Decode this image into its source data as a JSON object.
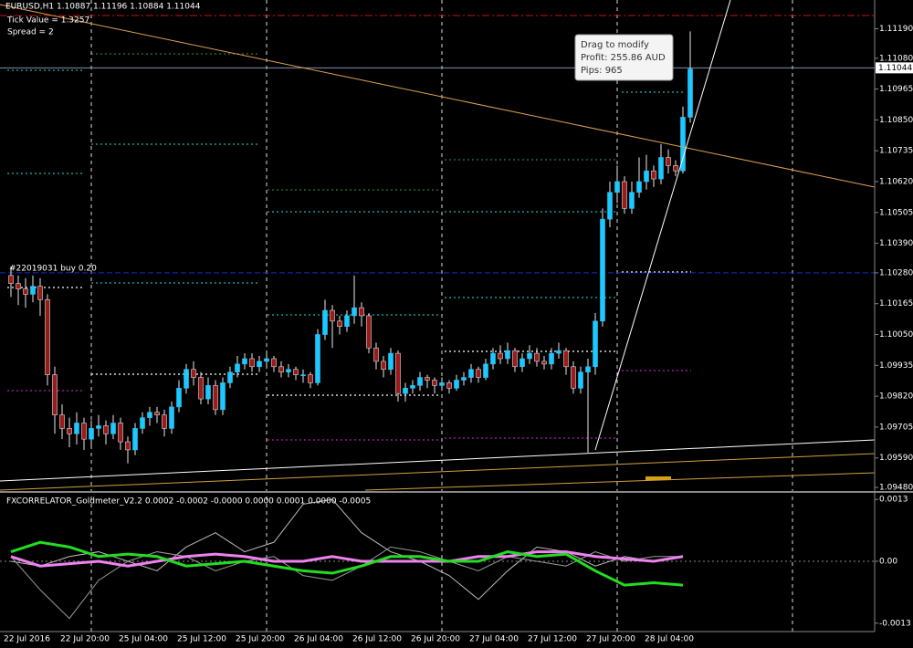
{
  "header": {
    "symbol_line": "EURUSD,H1  1.10887 1.11196 1.10884 1.11044",
    "tick_value": "Tick Value = 1.3257",
    "spread": "Spread = 2"
  },
  "tooltip": {
    "title": "Drag to modify",
    "profit": "Profit: 255.86 AUD",
    "pips": "Pips: 965"
  },
  "price_chart": {
    "type": "candlestick",
    "ylim": [
      1.0947,
      1.1128
    ],
    "yticks": [
      {
        "value": 1.1119,
        "label": "1.11190"
      },
      {
        "value": 1.1108,
        "label": "1.11080"
      },
      {
        "value": 1.10965,
        "label": "1.10965"
      },
      {
        "value": 1.1085,
        "label": "1.10850"
      },
      {
        "value": 1.10735,
        "label": "1.10735"
      },
      {
        "value": 1.1062,
        "label": "1.10620"
      },
      {
        "value": 1.10505,
        "label": "1.10505"
      },
      {
        "value": 1.1039,
        "label": "1.10390"
      },
      {
        "value": 1.1028,
        "label": "1.10280"
      },
      {
        "value": 1.10165,
        "label": "1.10165"
      },
      {
        "value": 1.1005,
        "label": "1.10050"
      },
      {
        "value": 1.09935,
        "label": "1.09935"
      },
      {
        "value": 1.0982,
        "label": "1.09820"
      },
      {
        "value": 1.09705,
        "label": "1.09705"
      },
      {
        "value": 1.0959,
        "label": "1.09590"
      },
      {
        "value": 1.0948,
        "label": "1.09480"
      }
    ],
    "bid": {
      "value": 1.11044,
      "label": "1.11044"
    },
    "take_profit": 1.11239,
    "order": {
      "label": "#22019031 buy 0.20",
      "price": 1.1028
    },
    "bull_color": "#1ec8ff",
    "bear_color": "#9b1a1a",
    "categories": [
      "22 Jul 2016",
      null,
      null,
      null,
      null,
      null,
      null,
      null,
      null,
      null,
      null,
      "22 Jul 20:00",
      null,
      null,
      null,
      null,
      null,
      null,
      null,
      "25 Jul 04:00",
      null,
      null,
      null,
      null,
      null,
      null,
      null,
      "25 Jul 12:00",
      null,
      null,
      null,
      null,
      null,
      null,
      null,
      "25 Jul 20:00",
      null,
      null,
      null,
      null,
      null,
      null,
      null,
      "26 Jul 04:00",
      null,
      null,
      null,
      null,
      null,
      null,
      null,
      "26 Jul 12:00",
      null,
      null,
      null,
      null,
      null,
      null,
      null,
      "26 Jul 20:00",
      null,
      null,
      null,
      null,
      null,
      null,
      null,
      "27 Jul 04:00",
      null,
      null,
      null,
      null,
      null,
      null,
      null,
      "27 Jul 12:00",
      null,
      null,
      null,
      null,
      null,
      null,
      null,
      "27 Jul 20:00",
      null,
      null,
      null,
      null,
      null,
      null,
      null,
      "28 Jul 04:00",
      null,
      null
    ],
    "open": [
      1.1027,
      1.1024,
      1.1022,
      1.102,
      1.1023,
      1.1018,
      1.099,
      1.0975,
      1.097,
      1.0968,
      1.0972,
      1.0966,
      1.097,
      1.0971,
      1.0968,
      1.0972,
      1.0965,
      1.0962,
      1.097,
      1.0974,
      1.0976,
      1.0975,
      1.097,
      1.0978,
      1.0985,
      1.0992,
      1.0989,
      1.0981,
      1.0986,
      1.0977,
      1.0987,
      1.0991,
      1.0994,
      1.0996,
      1.0993,
      1.0995,
      1.0996,
      1.0993,
      1.0991,
      1.0992,
      1.099,
      1.099,
      1.0987,
      1.1005,
      1.1014,
      1.101,
      1.1008,
      1.1012,
      1.1015,
      1.1012,
      1.1,
      1.0995,
      1.0992,
      1.0998,
      1.0983,
      1.0985,
      1.0986,
      1.0989,
      1.0988,
      1.0986,
      1.0987,
      1.0985,
      1.0988,
      1.0989,
      1.0992,
      1.0989,
      1.0994,
      1.0998,
      1.0996,
      1.0999,
      1.0993,
      1.0996,
      1.0998,
      1.0995,
      1.0994,
      1.0998,
      1.0999,
      1.0993,
      1.0985,
      1.0991,
      1.0993,
      1.101,
      1.1048,
      1.1058,
      1.1062,
      1.1052,
      1.1058,
      1.1062,
      1.1066,
      1.1063,
      1.1071,
      1.1068,
      1.1066,
      1.1086
    ],
    "high": [
      1.103,
      1.1027,
      1.1026,
      1.1027,
      1.1026,
      1.102,
      1.0993,
      1.0979,
      1.0974,
      1.0976,
      1.0974,
      1.0973,
      1.0975,
      1.0973,
      1.0975,
      1.0974,
      1.0967,
      1.0972,
      1.0976,
      1.0978,
      1.0978,
      1.0977,
      1.098,
      1.0988,
      1.0994,
      1.0995,
      1.0991,
      1.0989,
      1.0988,
      1.0989,
      1.0993,
      1.0997,
      1.0998,
      1.0998,
      1.0997,
      1.0998,
      1.0997,
      1.0995,
      1.0994,
      1.0993,
      1.0992,
      1.0991,
      1.1007,
      1.1018,
      1.1016,
      1.1012,
      1.1014,
      1.1027,
      1.1017,
      1.1013,
      1.1002,
      1.0997,
      1.1,
      1.0999,
      1.0987,
      1.0988,
      1.0991,
      1.099,
      1.0989,
      1.0989,
      1.0988,
      1.099,
      1.0991,
      1.0994,
      1.0993,
      1.0996,
      1.1,
      1.1001,
      1.1002,
      1.1,
      1.0998,
      1.1001,
      1.1,
      1.0997,
      1.1,
      1.1002,
      1.1,
      1.0995,
      1.0993,
      1.0996,
      1.1013,
      1.1052,
      1.1062,
      1.1068,
      1.1064,
      1.1062,
      1.1071,
      1.1072,
      1.1068,
      1.1076,
      1.1074,
      1.107,
      1.109,
      1.1118
    ],
    "low": [
      1.1019,
      1.1016,
      1.1015,
      1.1017,
      1.1012,
      1.0986,
      1.0968,
      1.0966,
      1.0963,
      1.0964,
      1.0962,
      1.0963,
      1.0967,
      1.0964,
      1.0966,
      1.0962,
      1.0957,
      1.096,
      1.0968,
      1.0971,
      1.0972,
      1.0967,
      1.0968,
      1.0976,
      1.0983,
      1.0986,
      1.0979,
      1.0979,
      1.0975,
      1.0975,
      1.0985,
      1.0989,
      1.0992,
      1.0991,
      1.0991,
      1.0993,
      1.0991,
      1.0989,
      1.0989,
      1.0988,
      1.0987,
      1.0985,
      1.0986,
      1.1003,
      1.1,
      1.1005,
      1.1006,
      1.1009,
      1.1008,
      1.0998,
      1.0992,
      1.0989,
      1.099,
      1.098,
      1.098,
      1.0983,
      1.0984,
      1.0985,
      1.0983,
      1.0984,
      1.0983,
      1.0984,
      1.0986,
      1.0987,
      1.0987,
      1.0988,
      1.0992,
      1.0994,
      1.0994,
      1.0991,
      1.0991,
      1.0994,
      1.0993,
      1.0992,
      1.0992,
      1.0996,
      1.099,
      1.0983,
      1.0983,
      1.0961,
      1.099,
      1.1008,
      1.1045,
      1.1054,
      1.105,
      1.105,
      1.1056,
      1.1059,
      1.106,
      1.1061,
      1.1065,
      1.1064,
      1.1065,
      1.1084
    ],
    "close": [
      1.1024,
      1.1022,
      1.102,
      1.1023,
      1.1018,
      1.099,
      1.0975,
      1.097,
      1.0968,
      1.0972,
      1.0966,
      1.097,
      1.0971,
      1.0968,
      1.0972,
      1.0965,
      1.0962,
      1.097,
      1.0974,
      1.0976,
      1.0975,
      1.097,
      1.0978,
      1.0985,
      1.0992,
      1.0989,
      1.0981,
      1.0986,
      1.0977,
      1.0987,
      1.0991,
      1.0994,
      1.0996,
      1.0993,
      1.0995,
      1.0996,
      1.0993,
      1.0991,
      1.0992,
      1.099,
      1.099,
      1.0987,
      1.1005,
      1.1014,
      1.101,
      1.1008,
      1.1012,
      1.1015,
      1.1012,
      1.1,
      1.0995,
      1.0992,
      1.0998,
      1.0983,
      1.0985,
      1.0986,
      1.0989,
      1.0988,
      1.0986,
      1.0987,
      1.0985,
      1.0988,
      1.0989,
      1.0992,
      1.0989,
      1.0994,
      1.0998,
      1.0996,
      1.0999,
      1.0993,
      1.0996,
      1.0998,
      1.0995,
      1.0994,
      1.0998,
      1.0999,
      1.0993,
      1.0985,
      1.0991,
      1.0993,
      1.101,
      1.1048,
      1.1058,
      1.1062,
      1.1052,
      1.1058,
      1.1062,
      1.1066,
      1.1063,
      1.1071,
      1.1068,
      1.1066,
      1.1086,
      1.1104
    ]
  },
  "indicator": {
    "type": "line",
    "label": "FXCORRELATOR_Goldmeter_V2.2 0.0002 -0.0002 -0.0000 0.0000 0.0001 0.0000 -0.0005",
    "ylim": [
      -0.0014,
      0.0014
    ],
    "yticks": [
      0.0013,
      {
        "value": 0,
        "label": "0.00"
      },
      -0.0013
    ],
    "series": [
      {
        "color": "#bbbbbb",
        "values": [
          0.0,
          -0.0001,
          0.0001,
          0.0002,
          0.0,
          -0.0002,
          0.0003,
          0.0006,
          0.0002,
          0.0004,
          0.0012,
          0.0013,
          0.0006,
          0.0002,
          0.0,
          -0.0003,
          -0.0008,
          -0.0002,
          0.0003,
          0.0002,
          -0.0001,
          0.0001,
          0.0,
          0.0001
        ]
      },
      {
        "color": "#999999",
        "values": [
          0.0001,
          -0.0006,
          -0.0012,
          -0.0004,
          0.0,
          0.0002,
          0.0001,
          -0.0002,
          0.0,
          0.0001,
          -0.0003,
          -0.0004,
          -0.0001,
          0.0003,
          0.0002,
          0.0,
          -0.0002,
          0.0001,
          0.0,
          -0.0001,
          0.0002,
          0.0,
          0.0001,
          0.0001
        ]
      },
      {
        "color": "#ee82ee",
        "values": [
          0.0001,
          -0.0001,
          -5e-05,
          0.0,
          -0.0001,
          0.0,
          0.0001,
          0.00015,
          0.0001,
          0.0,
          0.0,
          0.0001,
          0.0,
          0.0,
          0.0,
          0.0,
          0.0001,
          0.0001,
          0.0002,
          0.0002,
          0.0001,
          5e-05,
          0.0,
          0.0001
        ]
      },
      {
        "color": "#22dd22",
        "values": [
          0.0002,
          0.0004,
          0.0003,
          0.0001,
          0.00015,
          0.0001,
          -0.0001,
          -5e-05,
          0.0,
          -0.0001,
          -0.0002,
          -0.00025,
          -0.0001,
          0.0001,
          0.0001,
          0.0,
          0.0,
          0.0002,
          0.0001,
          0.00015,
          -0.0002,
          -0.0005,
          -0.00045,
          -0.0005
        ]
      }
    ]
  }
}
